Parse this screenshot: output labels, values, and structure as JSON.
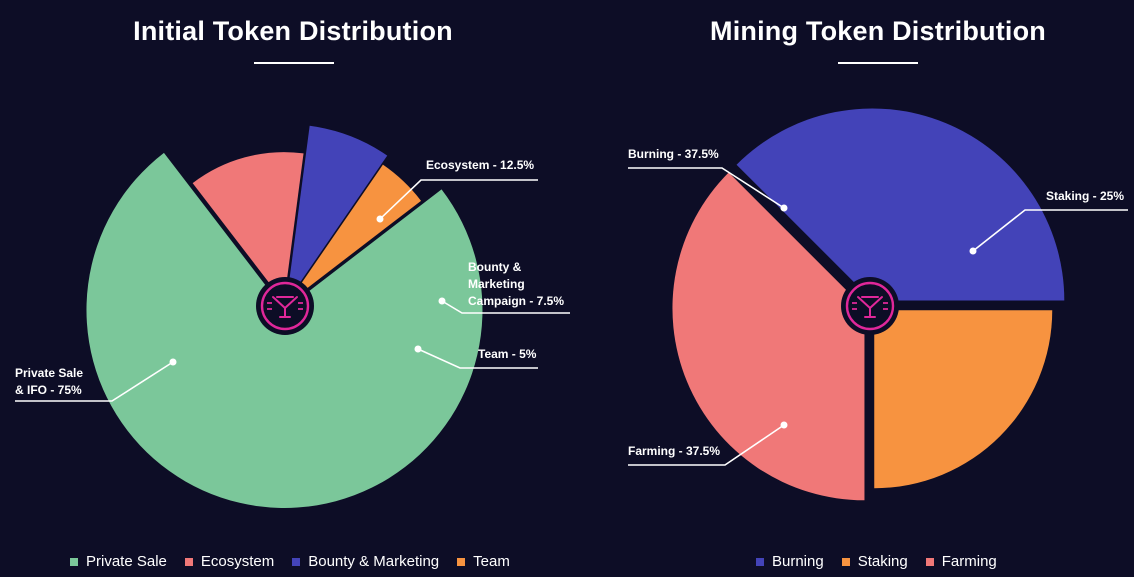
{
  "chart_data": [
    {
      "type": "pie",
      "title": "Initial Token Distribution",
      "slices": [
        {
          "name": "Private Sale & IFO",
          "label": "Private Sale\n& IFO - 75%",
          "value": 75,
          "color": "#7bc79a"
        },
        {
          "name": "Ecosystem",
          "label": "Ecosystem - 12.5%",
          "value": 12.5,
          "color": "#f07878"
        },
        {
          "name": "Bounty & Marketing Campaign",
          "label": "Bounty &\nMarketing\nCampaign - 7.5%",
          "value": 7.5,
          "color": "#4343b8"
        },
        {
          "name": "Team",
          "label": "Team - 5%",
          "value": 5,
          "color": "#f79340"
        }
      ],
      "legend": [
        "Private Sale",
        "Ecosystem",
        "Bounty & Marketing",
        "Team"
      ]
    },
    {
      "type": "pie",
      "title": "Mining Token Distribution",
      "slices": [
        {
          "name": "Burning",
          "label": "Burning - 37.5%",
          "value": 37.5,
          "color": "#4343b8"
        },
        {
          "name": "Staking",
          "label": "Staking - 25%",
          "value": 25,
          "color": "#f79340"
        },
        {
          "name": "Farming",
          "label": "Farming - 37.5%",
          "value": 37.5,
          "color": "#f07878"
        }
      ],
      "legend": [
        "Burning",
        "Staking",
        "Farming"
      ]
    }
  ],
  "logo": {
    "color": "#e0279a"
  }
}
